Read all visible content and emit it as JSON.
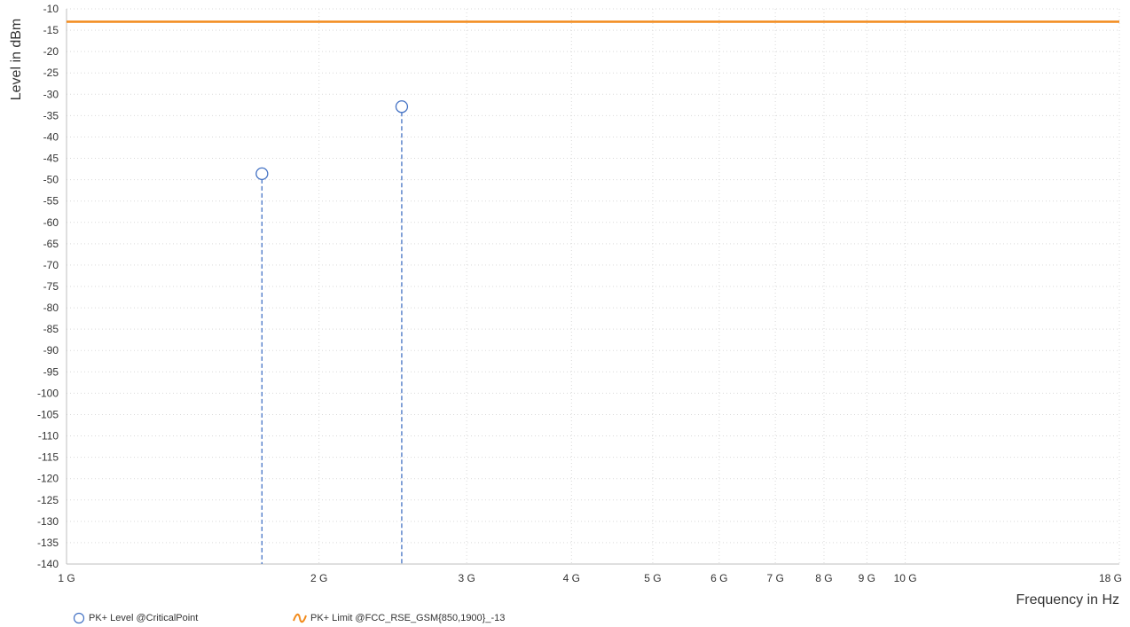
{
  "chart_data": {
    "type": "scatter",
    "xlabel": "Frequency in Hz",
    "ylabel": "Level in dBm",
    "xscale": "log",
    "xlim": [
      1000000000,
      18000000000
    ],
    "ylim": [
      -140,
      -10
    ],
    "grid": true,
    "legend_placement": "bottom",
    "x_ticks": [
      {
        "value": 1000000000,
        "label": "1 G"
      },
      {
        "value": 2000000000,
        "label": "2 G"
      },
      {
        "value": 3000000000,
        "label": "3 G"
      },
      {
        "value": 4000000000,
        "label": "4 G"
      },
      {
        "value": 5000000000,
        "label": "5 G"
      },
      {
        "value": 6000000000,
        "label": "6 G"
      },
      {
        "value": 7000000000,
        "label": "7 G"
      },
      {
        "value": 8000000000,
        "label": "8 G"
      },
      {
        "value": 9000000000,
        "label": "9 G"
      },
      {
        "value": 10000000000,
        "label": "10 G"
      },
      {
        "value": 18000000000,
        "label": "18 G"
      }
    ],
    "y_ticks": [
      -10,
      -15,
      -20,
      -25,
      -30,
      -35,
      -40,
      -45,
      -50,
      -55,
      -60,
      -65,
      -70,
      -75,
      -80,
      -85,
      -90,
      -95,
      -100,
      -105,
      -110,
      -115,
      -120,
      -125,
      -130,
      -135,
      -140
    ],
    "series": [
      {
        "name": "PK+ Level @CriticalPoint",
        "kind": "points",
        "color": "#4472c4",
        "points": [
          {
            "x": 1710000000,
            "y": -48.6
          },
          {
            "x": 2510000000,
            "y": -32.9
          }
        ]
      },
      {
        "name": "PK+ Limit @FCC_RSE_GSM{850,1900}_-13",
        "kind": "line",
        "color": "#f28c1e",
        "points": [
          {
            "x": 1000000000,
            "y": -13
          },
          {
            "x": 18000000000,
            "y": -13
          }
        ]
      }
    ]
  }
}
